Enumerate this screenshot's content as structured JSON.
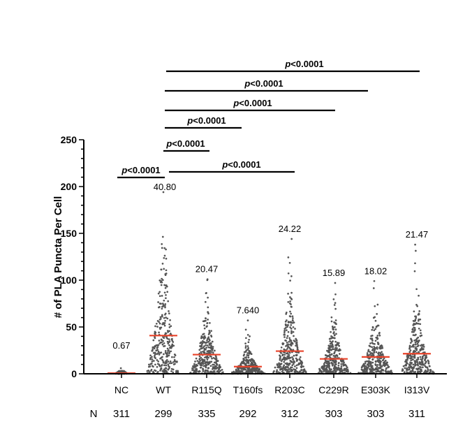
{
  "chart_data": {
    "type": "scatter",
    "ylabel": "# of PLA Puncta Per Cell",
    "ylim": [
      0,
      250
    ],
    "yticks": [
      0,
      50,
      100,
      150,
      200,
      250
    ],
    "grid": false,
    "legend": "none",
    "categories": [
      "NC",
      "WT",
      "R115Q",
      "T160fs",
      "R203C",
      "C229R",
      "E303K",
      "I313V"
    ],
    "means": [
      0.67,
      40.8,
      20.47,
      7.64,
      24.22,
      15.89,
      18.02,
      21.47
    ],
    "mean_labels": [
      "0.67",
      "40.80",
      "20.47",
      "7.640",
      "24.22",
      "15.89",
      "18.02",
      "21.47"
    ],
    "max_values": [
      6,
      194,
      101,
      57,
      144,
      97,
      99,
      138
    ],
    "n_label": "N",
    "n_values": [
      "311",
      "299",
      "335",
      "292",
      "312",
      "303",
      "303",
      "311"
    ],
    "dot_color": "#555555",
    "mean_color": "#e8432a",
    "comparisons": [
      {
        "from": "NC",
        "to": "WT",
        "label": "p<0.0001"
      },
      {
        "from": "WT",
        "to": "R115Q",
        "label": "p<0.0001"
      },
      {
        "from": "WT",
        "to": "T160fs",
        "label": "p<0.0001"
      },
      {
        "from": "WT",
        "to": "R203C",
        "label": "p<0.0001"
      },
      {
        "from": "WT",
        "to": "C229R",
        "label": "p<0.0001"
      },
      {
        "from": "WT",
        "to": "E303K",
        "label": "p<0.0001"
      },
      {
        "from": "WT",
        "to": "I313V",
        "label": "p<0.0001"
      }
    ]
  }
}
